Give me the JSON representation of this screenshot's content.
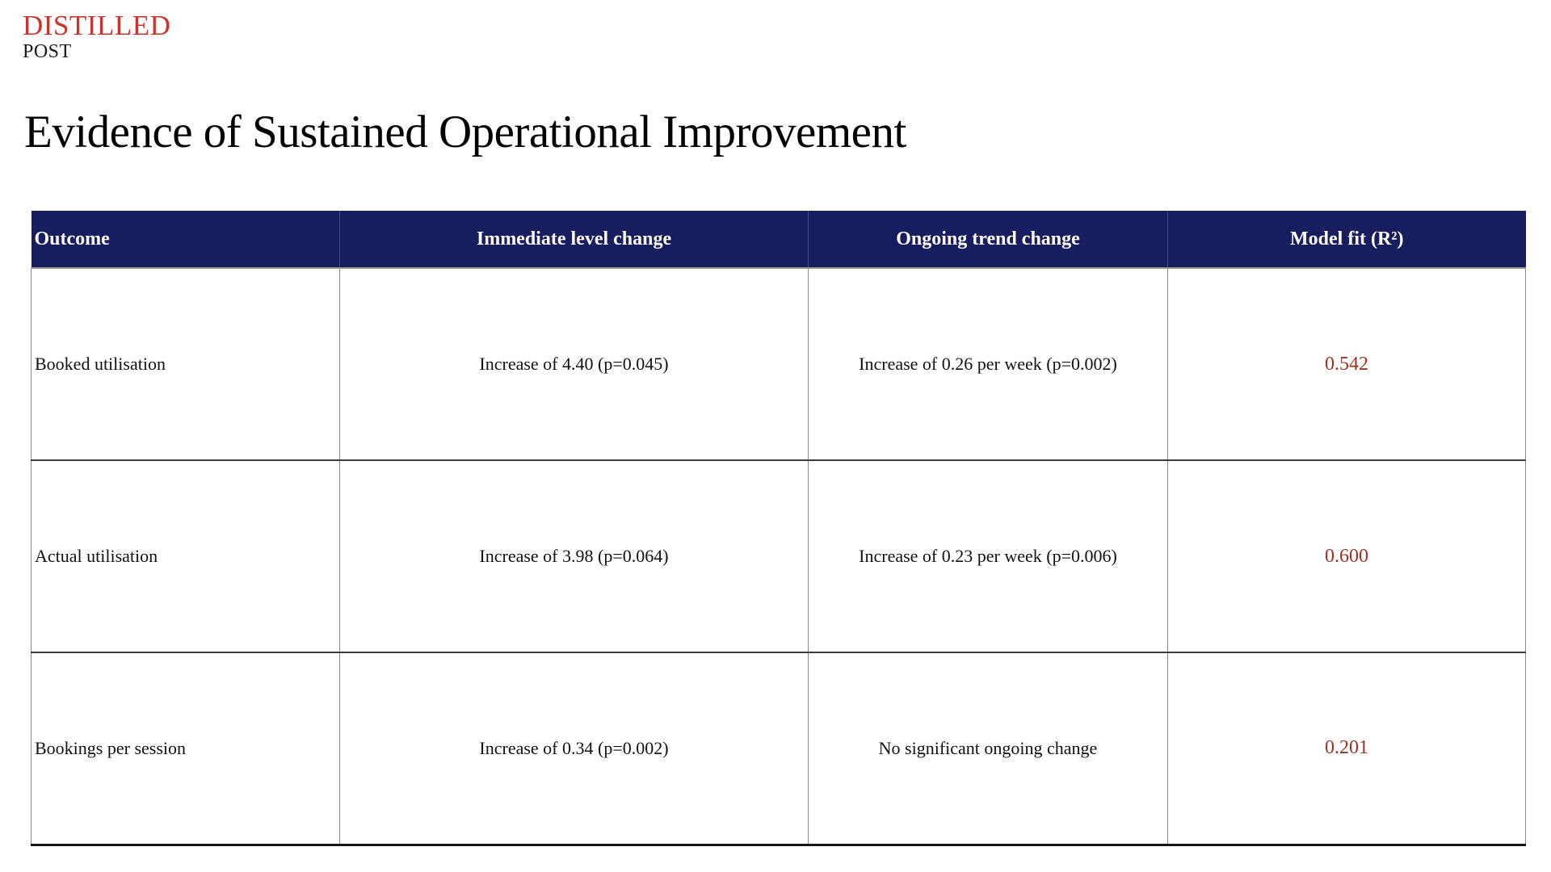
{
  "brand": {
    "name": "DISTILLED",
    "subtitle": "POST"
  },
  "page": {
    "title": "Evidence of Sustained Operational Improvement"
  },
  "colors": {
    "brand_red": "#c8352f",
    "table_header_bg": "#171d5e",
    "model_fit_red": "#9a3324"
  },
  "table": {
    "headers": [
      "Outcome",
      "Immediate level change",
      "Ongoing trend change",
      "Model fit (R²)"
    ],
    "rows": [
      {
        "outcome": "Booked utilisation",
        "immediate": "Increase of 4.40 (p=0.045)",
        "trend": "Increase of 0.26 per week (p=0.002)",
        "fit": "0.542"
      },
      {
        "outcome": "Actual utilisation",
        "immediate": "Increase of 3.98 (p=0.064)",
        "trend": "Increase of 0.23 per week (p=0.006)",
        "fit": "0.600"
      },
      {
        "outcome": "Bookings per session",
        "immediate": "Increase of 0.34 (p=0.002)",
        "trend": "No significant ongoing change",
        "fit": "0.201"
      }
    ]
  }
}
